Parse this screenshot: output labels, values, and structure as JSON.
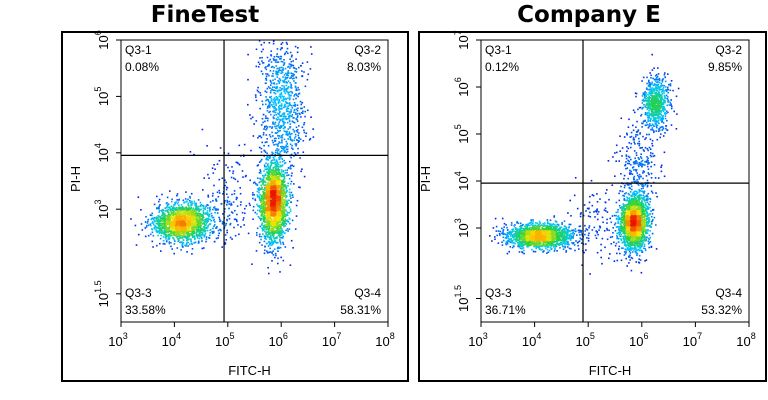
{
  "chart_data": [
    {
      "type": "scatter",
      "title": "FineTest",
      "xlabel": "FITC-H",
      "ylabel": "PI-H",
      "x_scale": "log",
      "y_scale": "log",
      "xlim": [
        1000,
        100000000
      ],
      "ylim": [
        10,
        1000000
      ],
      "x_ticks": [
        {
          "value": 1000,
          "base": "10",
          "exp": "3"
        },
        {
          "value": 10000,
          "base": "10",
          "exp": "4"
        },
        {
          "value": 100000,
          "base": "10",
          "exp": "5"
        },
        {
          "value": 1000000,
          "base": "10",
          "exp": "6"
        },
        {
          "value": 10000000,
          "base": "10",
          "exp": "7"
        },
        {
          "value": 100000000,
          "base": "10",
          "exp": "8"
        }
      ],
      "y_ticks": [
        {
          "value": 31.6,
          "base": "10",
          "exp": "1.5"
        },
        {
          "value": 1000,
          "base": "10",
          "exp": "3"
        },
        {
          "value": 10000,
          "base": "10",
          "exp": "4"
        },
        {
          "value": 100000,
          "base": "10",
          "exp": "5"
        },
        {
          "value": 1000000,
          "base": "10",
          "exp": "6"
        }
      ],
      "gates": {
        "x": 85000,
        "y": 9000
      },
      "quadrants": [
        {
          "name": "Q3-1",
          "percent": "0.08%",
          "position": "top-left"
        },
        {
          "name": "Q3-2",
          "percent": "8.03%",
          "position": "top-right"
        },
        {
          "name": "Q3-3",
          "percent": "33.58%",
          "position": "bottom-left"
        },
        {
          "name": "Q3-4",
          "percent": "58.31%",
          "position": "bottom-right"
        }
      ],
      "populations": [
        {
          "cx": 14000,
          "cy": 600,
          "sx": 0.28,
          "sy": 0.17,
          "n": 1650,
          "rot": 0.1
        },
        {
          "cx": 700000,
          "cy": 1400,
          "sx": 0.13,
          "sy": 0.36,
          "n": 2100,
          "rot": 0.0
        },
        {
          "cx": 1000000,
          "cy": 80000,
          "sx": 0.22,
          "sy": 0.6,
          "n": 800,
          "rot": 0.0
        },
        {
          "cx": 100000,
          "cy": 1500,
          "sx": 0.35,
          "sy": 0.45,
          "n": 180,
          "rot": 0.0
        }
      ]
    },
    {
      "type": "scatter",
      "title": "Company E",
      "xlabel": "FITC-H",
      "ylabel": "PI-H",
      "x_scale": "log",
      "y_scale": "log",
      "xlim": [
        1000,
        100000000
      ],
      "ylim": [
        10,
        10000000
      ],
      "x_ticks": [
        {
          "value": 1000,
          "base": "10",
          "exp": "3"
        },
        {
          "value": 10000,
          "base": "10",
          "exp": "4"
        },
        {
          "value": 100000,
          "base": "10",
          "exp": "5"
        },
        {
          "value": 1000000,
          "base": "10",
          "exp": "6"
        },
        {
          "value": 10000000,
          "base": "10",
          "exp": "7"
        },
        {
          "value": 100000000,
          "base": "10",
          "exp": "8"
        }
      ],
      "y_ticks": [
        {
          "value": 31.6,
          "base": "10",
          "exp": "1.5"
        },
        {
          "value": 1000,
          "base": "10",
          "exp": "3"
        },
        {
          "value": 10000,
          "base": "10",
          "exp": "4"
        },
        {
          "value": 100000,
          "base": "10",
          "exp": "5"
        },
        {
          "value": 1000000,
          "base": "10",
          "exp": "6"
        },
        {
          "value": 10000000,
          "base": "10",
          "exp": "7"
        }
      ],
      "gates": {
        "x": 80000,
        "y": 9000
      },
      "quadrants": [
        {
          "name": "Q3-1",
          "percent": "0.12%",
          "position": "top-left"
        },
        {
          "name": "Q3-2",
          "percent": "9.85%",
          "position": "top-right"
        },
        {
          "name": "Q3-3",
          "percent": "36.71%",
          "position": "bottom-left"
        },
        {
          "name": "Q3-4",
          "percent": "53.32%",
          "position": "bottom-right"
        }
      ],
      "populations": [
        {
          "cx": 12000,
          "cy": 700,
          "sx": 0.32,
          "sy": 0.13,
          "n": 1650,
          "rot": 0.05
        },
        {
          "cx": 700000,
          "cy": 1400,
          "sx": 0.13,
          "sy": 0.3,
          "n": 2000,
          "rot": 0.0
        },
        {
          "cx": 1800000,
          "cy": 500000,
          "sx": 0.12,
          "sy": 0.28,
          "n": 650,
          "rot": 0.0
        },
        {
          "cx": 900000,
          "cy": 30000,
          "sx": 0.2,
          "sy": 0.45,
          "n": 250,
          "rot": 0.0
        },
        {
          "cx": 150000,
          "cy": 1500,
          "sx": 0.3,
          "sy": 0.4,
          "n": 120,
          "rot": 0.0
        }
      ]
    }
  ]
}
